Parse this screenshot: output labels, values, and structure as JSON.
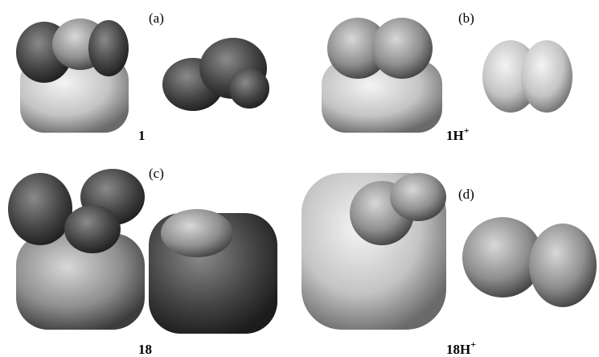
{
  "panels": [
    {
      "label": "(a)",
      "compound": {
        "base": "1"
      }
    },
    {
      "label": "(b)",
      "compound": {
        "base": "1H",
        "superscript": "+"
      }
    },
    {
      "label": "(c)",
      "compound": {
        "base": "18"
      }
    },
    {
      "label": "(d)",
      "compound": {
        "base": "18H",
        "superscript": "+"
      }
    }
  ]
}
